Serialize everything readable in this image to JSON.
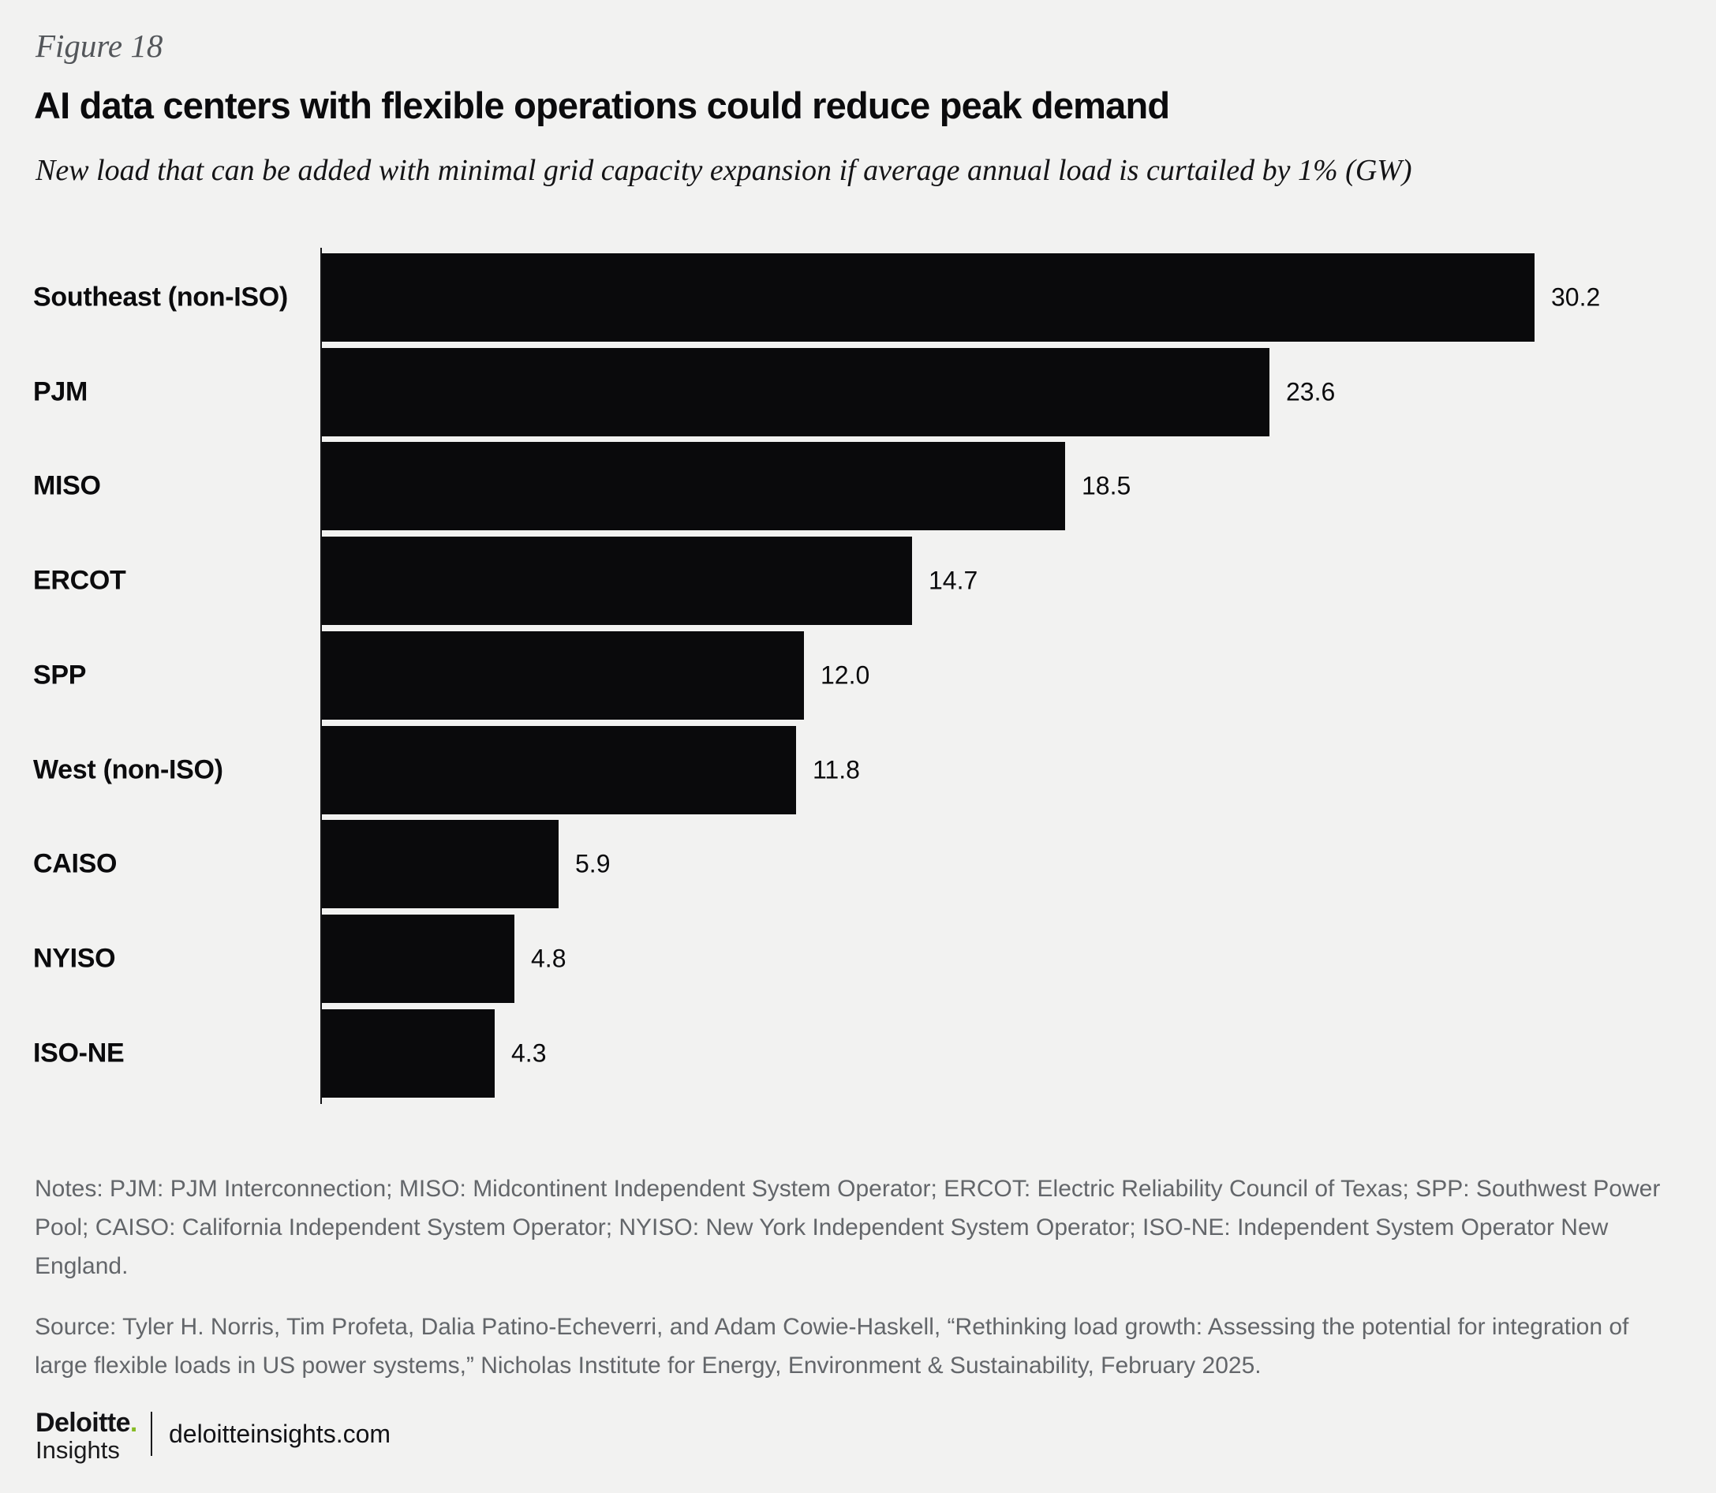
{
  "figure_label": "Figure 18",
  "title": "AI data centers with flexible operations could reduce peak demand",
  "subtitle": "New load that can be added with minimal grid capacity expansion if average annual load is curtailed by 1% (GW)",
  "chart_data": {
    "type": "bar",
    "orientation": "horizontal",
    "categories": [
      "Southeast (non-ISO)",
      "PJM",
      "MISO",
      "ERCOT",
      "SPP",
      "West (non-ISO)",
      "CAISO",
      "NYISO",
      "ISO-NE"
    ],
    "values": [
      30.2,
      23.6,
      18.5,
      14.7,
      12.0,
      11.8,
      5.9,
      4.8,
      4.3
    ],
    "value_labels": [
      "30.2",
      "23.6",
      "18.5",
      "14.7",
      "12.0",
      "11.8",
      "5.9",
      "4.8",
      "4.3"
    ],
    "unit": "GW",
    "xlim": [
      0,
      30.2
    ],
    "grid": false,
    "value_label_position": "right-of-bar",
    "bar_color": "#0a0a0c"
  },
  "notes": "Notes: PJM: PJM Interconnection; MISO: Midcontinent Independent System Operator; ERCOT: Electric Reliability Council of Texas; SPP: Southwest Power Pool; CAISO: California Independent System Operator; NYISO: New York Independent System Operator; ISO-NE: Independent System Operator New England.",
  "source": "Source: Tyler H. Norris, Tim Profeta, Dalia Patino-Echeverri, and Adam Cowie-Haskell, “Rethinking load growth: Assessing the potential for integration of large flexible loads in US power systems,” Nicholas Institute for Energy, Environment & Sustainability, February 2025.",
  "footer": {
    "brand_primary": "Deloitte",
    "brand_dot": ".",
    "brand_secondary": "Insights",
    "website": "deloitteinsights.com"
  },
  "colors": {
    "background": "#f2f2f1",
    "bar": "#0a0a0c",
    "text_primary": "#0b0b0d",
    "text_muted": "#63666a",
    "figure_label": "#53565a",
    "brand_green": "#86bc25"
  }
}
